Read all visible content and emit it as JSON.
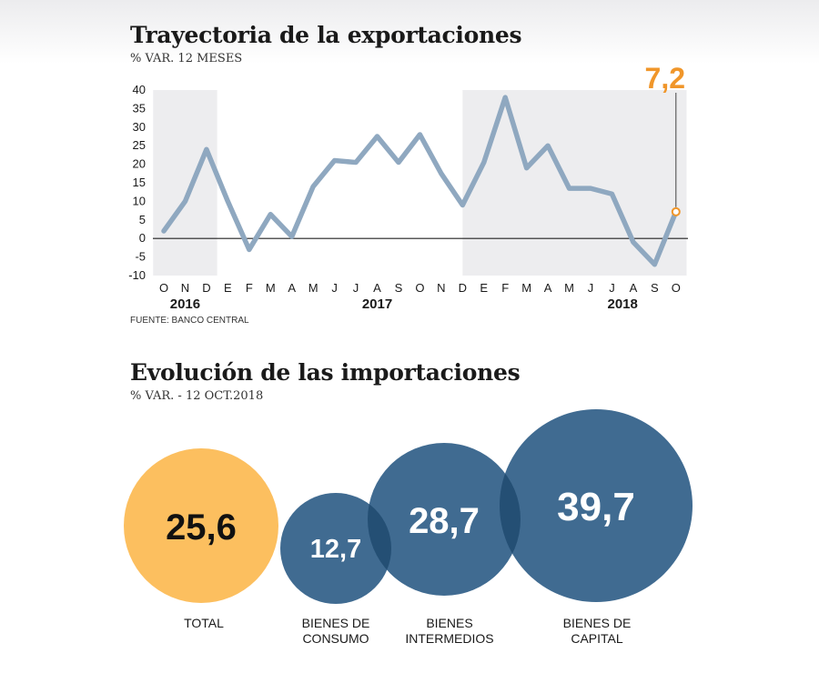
{
  "exports": {
    "title": "Trayectoria de la exportaciones",
    "subtitle": "% VAR. 12 MESES",
    "source": "FUENTE: BANCO CENTRAL",
    "highlight_label": "7,2"
  },
  "imports": {
    "title": "Evolución de las importaciones",
    "subtitle": "% VAR. - 12 OCT.2018"
  },
  "colors": {
    "line": "#8fa8c0",
    "band": "#ededef",
    "highlight": "#f0962a",
    "bubble_total": "#fcbf5f",
    "bubble_blue": "#406b91",
    "bubble_overlap": "#244f74"
  },
  "chart_data": [
    {
      "type": "line",
      "title": "Trayectoria de la exportaciones",
      "subtitle": "% VAR. 12 MESES",
      "x": [
        "O",
        "N",
        "D",
        "E",
        "F",
        "M",
        "A",
        "M",
        "J",
        "J",
        "A",
        "S",
        "O",
        "N",
        "D",
        "E",
        "F",
        "M",
        "A",
        "M",
        "J",
        "J",
        "A",
        "S",
        "O"
      ],
      "year_labels": [
        {
          "label": "2016",
          "index": 1
        },
        {
          "label": "2017",
          "index": 10
        },
        {
          "label": "2018",
          "index": 21.5
        }
      ],
      "series": [
        {
          "values": [
            2,
            10,
            24,
            10,
            -3,
            6.5,
            0.5,
            14,
            21,
            20.5,
            27.5,
            20.5,
            28,
            17.5,
            9,
            20.5,
            38,
            19,
            25,
            13.5,
            13.5,
            12,
            -1,
            -7,
            7.2
          ]
        }
      ],
      "yticks": [
        -10,
        -5,
        0,
        5,
        10,
        15,
        20,
        25,
        30,
        35,
        40
      ],
      "ylim": [
        -10,
        40
      ],
      "shaded_index_ranges": [
        [
          0,
          2.5
        ],
        [
          14.5,
          24.5
        ]
      ],
      "grid": false,
      "highlight": {
        "index": 24,
        "value": 7.2,
        "label": "7,2"
      }
    },
    {
      "type": "bubble",
      "title": "Evolución de las importaciones",
      "subtitle": "% VAR. - 12 OCT.2018",
      "categories": [
        "TOTAL",
        "BIENES DE CONSUMO",
        "BIENES INTERMEDIOS",
        "BIENES DE CAPITAL"
      ],
      "category_lines": [
        [
          "TOTAL"
        ],
        [
          "BIENES DE",
          "CONSUMO"
        ],
        [
          "BIENES",
          "INTERMEDIOS"
        ],
        [
          "BIENES DE",
          "CAPITAL"
        ]
      ],
      "values": [
        25.6,
        12.7,
        28.7,
        39.7
      ],
      "labels": [
        "25,6",
        "12,7",
        "28,7",
        "39,7"
      ]
    }
  ]
}
